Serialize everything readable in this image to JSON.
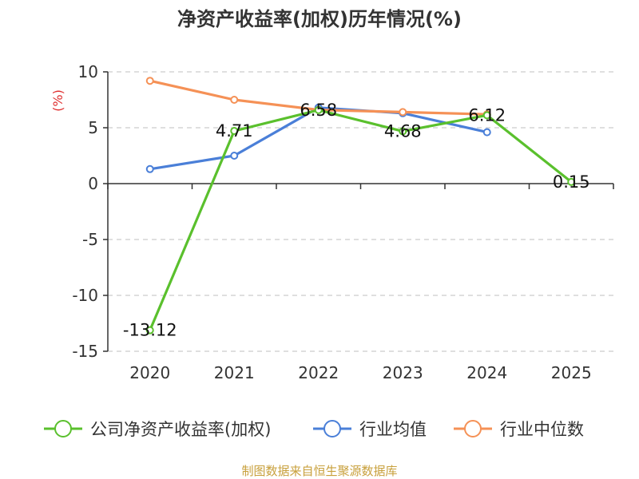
{
  "chart_data": {
    "type": "line",
    "title": "净资产收益率(加权)历年情况(%)",
    "ylabel": "(%)",
    "xlabel": "",
    "categories": [
      "2020",
      "2021",
      "2022",
      "2023",
      "2024",
      "2025"
    ],
    "yticks": [
      "10",
      "5",
      "0",
      "-5",
      "-10",
      "-15"
    ],
    "ylim": [
      -15,
      10
    ],
    "grid": true,
    "legend_position": "bottom",
    "series": [
      {
        "name": "公司净资产收益率(加权)",
        "color": "#5ac02d",
        "values": [
          -13.12,
          4.71,
          6.58,
          4.68,
          6.12,
          0.15
        ],
        "labels": [
          "-13.12",
          "4.71",
          "6.58",
          "4.68",
          "6.12",
          "0.15"
        ]
      },
      {
        "name": "行业均值",
        "color": "#4a7fd8",
        "values": [
          1.3,
          2.5,
          6.8,
          6.3,
          4.6,
          null
        ]
      },
      {
        "name": "行业中位数",
        "color": "#f59156",
        "values": [
          9.2,
          7.5,
          6.6,
          6.4,
          6.2,
          null
        ]
      }
    ]
  },
  "source": "制图数据来自恒生聚源数据库"
}
